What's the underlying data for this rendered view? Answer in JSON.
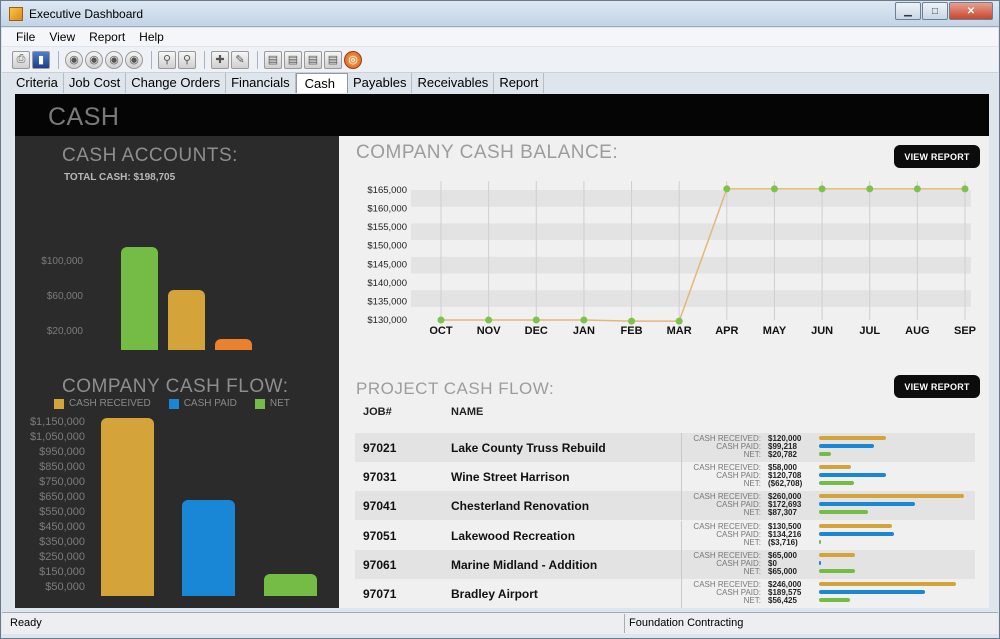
{
  "window": {
    "title": "Executive Dashboard"
  },
  "menu": [
    "File",
    "View",
    "Report",
    "Help"
  ],
  "toolbar_icons": [
    "print-icon",
    "exit-icon",
    "nav-first-icon",
    "nav-prev-icon",
    "nav-next-icon",
    "nav-last-icon",
    "search-icon",
    "find-icon",
    "add-icon",
    "edit-icon",
    "doc1-icon",
    "doc2-icon",
    "doc3-icon",
    "doc4-icon",
    "target-icon"
  ],
  "tabs": [
    "Criteria",
    "Job Cost",
    "Change Orders",
    "Financials",
    "Cash",
    "Payables",
    "Receivables",
    "Report"
  ],
  "active_tab": "Cash",
  "page_title": "CASH",
  "cash_accounts": {
    "title": "CASH ACCOUNTS:",
    "total": "TOTAL CASH: $198,705",
    "chart_data": {
      "type": "bar",
      "values": [
        117000,
        68000,
        13000
      ],
      "colors": [
        "#74bc45",
        "#d4a43a",
        "#e9812f"
      ],
      "yticks": [
        "$100,000",
        "$60,000",
        "$20,000"
      ],
      "ylim": [
        0,
        130000
      ]
    }
  },
  "company_cash_flow": {
    "title": "COMPANY CASH FLOW:",
    "legend": [
      {
        "label": "CASH RECEIVED",
        "color": "#d4a43a"
      },
      {
        "label": "CASH PAID",
        "color": "#1a86d6"
      },
      {
        "label": "NET",
        "color": "#74bc45"
      }
    ],
    "chart_data": {
      "type": "bar",
      "categories": [
        "CASH RECEIVED",
        "CASH PAID",
        "NET"
      ],
      "values": [
        1200000,
        650000,
        150000
      ],
      "colors": [
        "#d4a43a",
        "#1a86d6",
        "#74bc45"
      ],
      "yticks": [
        "$1,150,000",
        "$1,050,000",
        "$950,000",
        "$850,000",
        "$750,000",
        "$650,000",
        "$550,000",
        "$450,000",
        "$350,000",
        "$250,000",
        "$150,000",
        "$50,000"
      ],
      "ytick_values": [
        1150000,
        1050000,
        950000,
        850000,
        750000,
        650000,
        550000,
        450000,
        350000,
        250000,
        150000,
        50000
      ],
      "ylim": [
        0,
        1250000
      ]
    }
  },
  "company_cash_balance": {
    "title": "COMPANY CASH BALANCE:",
    "view_report": "VIEW REPORT",
    "chart_data": {
      "type": "line",
      "x": [
        "OCT",
        "NOV",
        "DEC",
        "JAN",
        "FEB",
        "MAR",
        "APR",
        "MAY",
        "JUN",
        "JUL",
        "AUG",
        "SEP"
      ],
      "y": [
        130000,
        130000,
        130000,
        130000,
        129700,
        129700,
        165300,
        165300,
        165300,
        165300,
        165300,
        165300
      ],
      "yticks": [
        "$165,000",
        "$160,000",
        "$155,000",
        "$150,000",
        "$145,000",
        "$140,000",
        "$135,000",
        "$130,000"
      ],
      "ytick_values": [
        165000,
        160000,
        155000,
        150000,
        145000,
        140000,
        135000,
        130000
      ],
      "ylim": [
        130000,
        165000
      ],
      "line_color": "#e2b878",
      "point_color": "#7fc24b"
    }
  },
  "project_cash_flow": {
    "title": "PROJECT CASH FLOW:",
    "view_report": "VIEW REPORT",
    "col_job": "JOB#",
    "col_name": "NAME",
    "metric_labels": [
      "CASH RECEIVED:",
      "CASH PAID:",
      "NET:"
    ],
    "rows": [
      {
        "job": "97021",
        "name": "Lake County Truss Rebuild",
        "received": "$120,000",
        "paid": "$99,218",
        "net": "$20,782",
        "rv": 120000,
        "pv": 99218,
        "nv": 20782
      },
      {
        "job": "97031",
        "name": "Wine Street Harrison",
        "received": "$58,000",
        "paid": "$120,708",
        "net": "($62,708)",
        "rv": 58000,
        "pv": 120708,
        "nv": -62708
      },
      {
        "job": "97041",
        "name": "Chesterland Renovation",
        "received": "$260,000",
        "paid": "$172,693",
        "net": "$87,307",
        "rv": 260000,
        "pv": 172693,
        "nv": 87307
      },
      {
        "job": "97051",
        "name": "Lakewood Recreation",
        "received": "$130,500",
        "paid": "$134,216",
        "net": "($3,716)",
        "rv": 130500,
        "pv": 134216,
        "nv": -3716
      },
      {
        "job": "97061",
        "name": "Marine Midland - Addition",
        "received": "$65,000",
        "paid": "$0",
        "net": "$65,000",
        "rv": 65000,
        "pv": 0,
        "nv": 65000
      },
      {
        "job": "97071",
        "name": "Bradley Airport",
        "received": "$246,000",
        "paid": "$189,575",
        "net": "$56,425",
        "rv": 246000,
        "pv": 189575,
        "nv": 56425
      }
    ],
    "colors": {
      "received": "#d4a43a",
      "paid": "#1a86d6",
      "net": "#74bc45"
    }
  },
  "status": {
    "left": "Ready",
    "right": "Foundation Contracting"
  }
}
